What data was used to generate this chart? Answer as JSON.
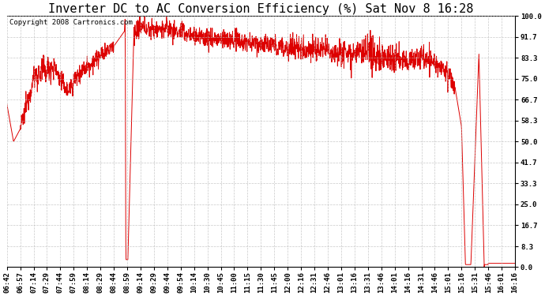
{
  "title": "Inverter DC to AC Conversion Efficiency (%) Sat Nov 8 16:28",
  "copyright": "Copyright 2008 Cartronics.com",
  "line_color": "#dd0000",
  "background_color": "#ffffff",
  "grid_color": "#bbbbbb",
  "yticks": [
    0.0,
    8.3,
    16.7,
    25.0,
    33.3,
    41.7,
    50.0,
    58.3,
    66.7,
    75.0,
    83.3,
    91.7,
    100.0
  ],
  "xtick_labels": [
    "06:42",
    "06:57",
    "07:14",
    "07:29",
    "07:44",
    "07:59",
    "08:14",
    "08:29",
    "08:44",
    "08:59",
    "09:14",
    "09:29",
    "09:44",
    "09:54",
    "10:14",
    "10:30",
    "10:45",
    "11:00",
    "11:15",
    "11:30",
    "11:45",
    "12:00",
    "12:16",
    "12:31",
    "12:46",
    "13:01",
    "13:16",
    "13:31",
    "13:46",
    "14:01",
    "14:16",
    "14:31",
    "14:46",
    "15:01",
    "15:16",
    "15:31",
    "15:46",
    "16:01",
    "16:16"
  ],
  "title_fontsize": 11,
  "tick_fontsize": 6.5,
  "copyright_fontsize": 6.5,
  "figwidth": 6.9,
  "figheight": 3.75,
  "dpi": 100
}
